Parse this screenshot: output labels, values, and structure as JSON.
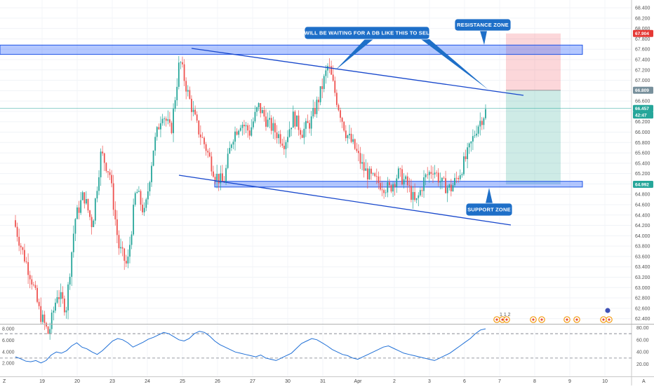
{
  "chart_data": {
    "type": "candlestick",
    "y_axis": {
      "ticks": [
        "68.400",
        "68.200",
        "68.000",
        "67.800",
        "67.600",
        "67.400",
        "67.200",
        "67.000",
        "66.800",
        "66.600",
        "66.400",
        "66.200",
        "66.000",
        "65.800",
        "65.600",
        "65.400",
        "65.200",
        "65.000",
        "64.800",
        "64.600",
        "64.400",
        "64.200",
        "64.000",
        "63.800",
        "63.600",
        "63.400",
        "63.200",
        "63.000",
        "62.800",
        "62.600",
        "62.400"
      ],
      "range": [
        62.3,
        68.55
      ]
    },
    "x_axis": {
      "ticks": [
        "19",
        "20",
        "23",
        "24",
        "25",
        "26",
        "27",
        "30",
        "31",
        "Apr",
        "2",
        "3",
        "6",
        "7",
        "8",
        "9",
        "10"
      ],
      "corner_left": "Z",
      "corner_right": "A"
    },
    "price_tags": [
      {
        "label": "67.904",
        "value": 67.904,
        "color": "#e53935"
      },
      {
        "label": "66.809",
        "value": 66.809,
        "color": "#78909c"
      },
      {
        "label": "66.457",
        "value": 66.457,
        "color": "#26a69a"
      },
      {
        "label": "42:47",
        "value": 66.33,
        "color": "#26a69a"
      },
      {
        "label": "64.992",
        "value": 64.992,
        "color": "#26a69a"
      }
    ],
    "current_price": 66.457,
    "zones": [
      {
        "name": "resistance",
        "low": 67.5,
        "high": 67.68
      },
      {
        "name": "support",
        "low": 64.94,
        "high": 65.05
      }
    ],
    "trendlines": [
      {
        "from": [
          0,
          67.6
        ],
        "to": [
          1,
          66.78
        ]
      },
      {
        "from": [
          0,
          65.15
        ],
        "to": [
          1,
          64.25
        ]
      }
    ],
    "position": {
      "entry": 66.809,
      "stop": 67.904,
      "target": 64.992
    },
    "annotations": [
      {
        "text": "I WILL BE WAITING FOR A DB LIKE THIS TO SELL"
      },
      {
        "text": "RESISTANCE ZONE"
      },
      {
        "text": "SUPPORT ZONE"
      }
    ],
    "candle_path": [
      64.3,
      63.7,
      63.2,
      62.5,
      62.1,
      62.9,
      62.6,
      64.3,
      64.8,
      64.2,
      65.6,
      65.2,
      63.8,
      63.4,
      64.9,
      64.4,
      65.7,
      66.4,
      66.0,
      67.4,
      66.7,
      66.1,
      65.7,
      65.2,
      65.0,
      65.9,
      66.2,
      66.0,
      66.5,
      66.2,
      66.0,
      65.8,
      66.3,
      66.0,
      66.2,
      66.7,
      67.3,
      66.6,
      66.0,
      65.7,
      65.3,
      65.1,
      65.0,
      64.9,
      65.2,
      65.0,
      64.6,
      65.1,
      65.3,
      65.0,
      64.9,
      65.2,
      65.6,
      66.1,
      66.4
    ],
    "rsi": {
      "ticks": [
        "8.000",
        "6.000",
        "4.000",
        "2.000"
      ],
      "right_ticks": [
        "80.00",
        "60.00",
        "40.00",
        "20.00"
      ],
      "range": [
        0,
        85
      ],
      "levels": [
        70,
        30
      ],
      "values": [
        32,
        29,
        25,
        24,
        26,
        22,
        26,
        35,
        40,
        38,
        42,
        50,
        55,
        48,
        45,
        40,
        36,
        42,
        50,
        58,
        62,
        60,
        55,
        48,
        52,
        56,
        61,
        64,
        68,
        72,
        70,
        65,
        60,
        58,
        62,
        70,
        74,
        72,
        66,
        58,
        52,
        48,
        44,
        40,
        38,
        36,
        34,
        32,
        35,
        30,
        28,
        26,
        30,
        34,
        38,
        46,
        54,
        58,
        62,
        60,
        55,
        50,
        44,
        40,
        36,
        34,
        30,
        28,
        32,
        36,
        40,
        44,
        48,
        50,
        46,
        42,
        38,
        36,
        34,
        32,
        30,
        28,
        26,
        30,
        34,
        38,
        44,
        50,
        56,
        62,
        70,
        76,
        78
      ]
    },
    "event_markers": [
      "1 1 2"
    ]
  }
}
